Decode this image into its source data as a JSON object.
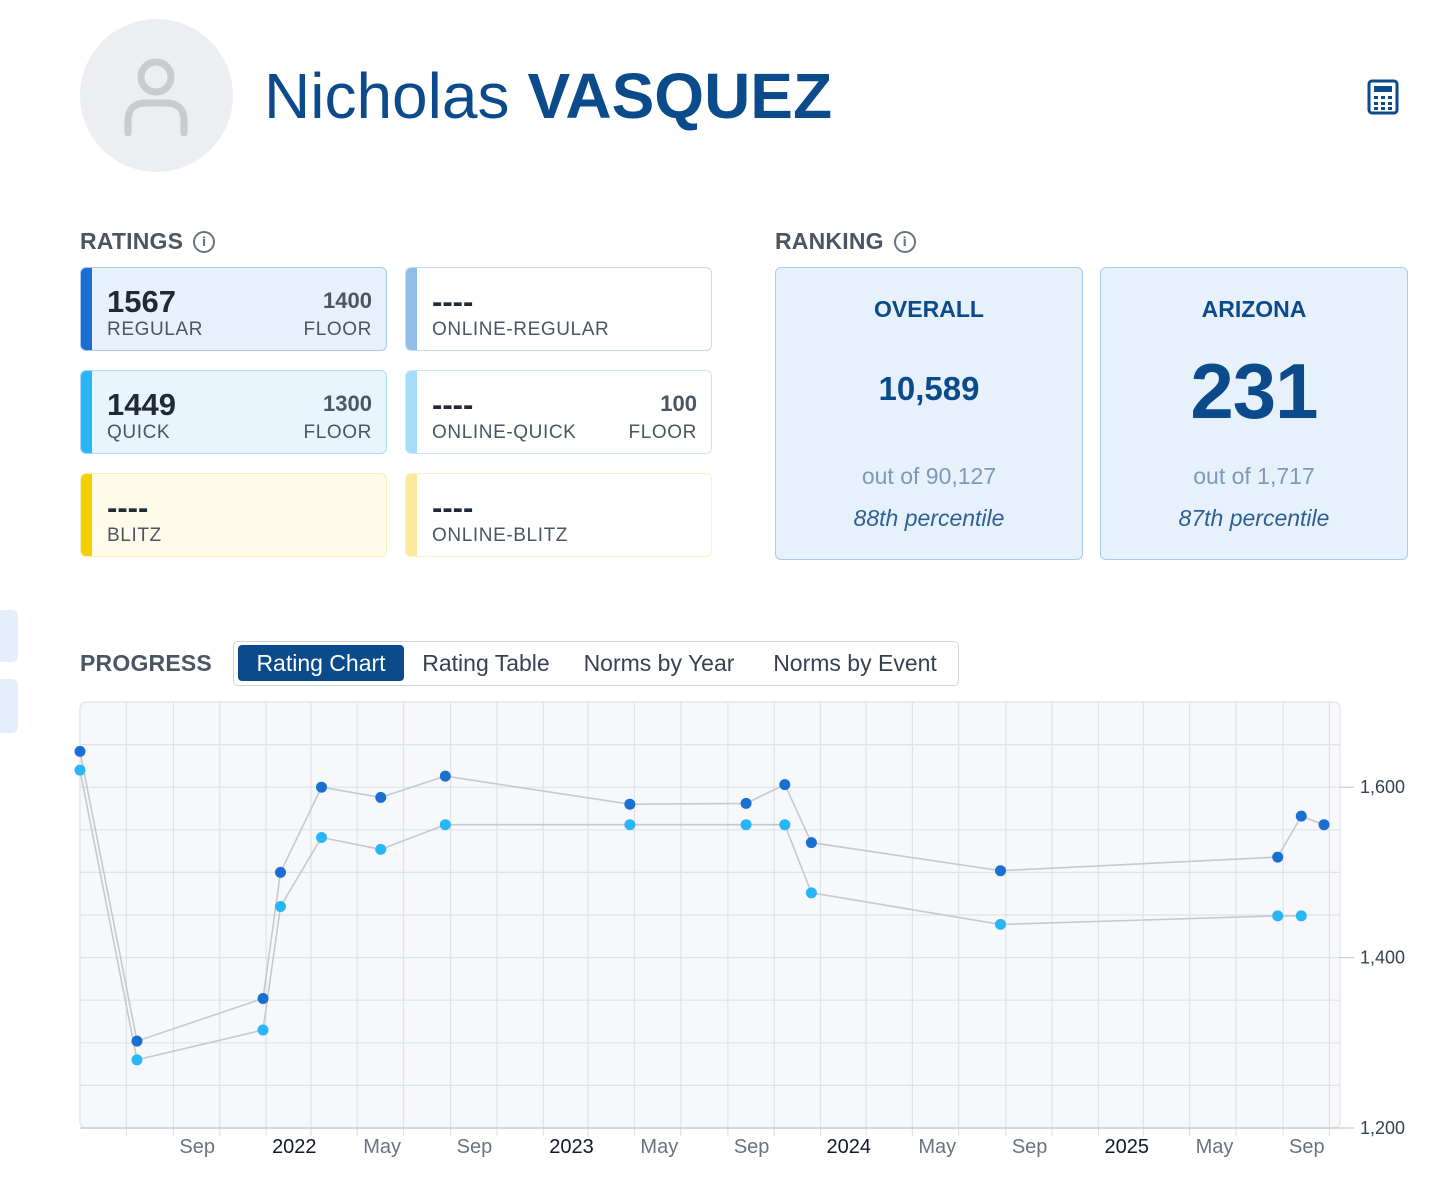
{
  "player": {
    "first_name": "Nicholas",
    "last_name": "VASQUEZ"
  },
  "ratings": {
    "title": "RATINGS",
    "cards": [
      {
        "value": "1567",
        "label": "REGULAR",
        "floor_value": "1400",
        "floor_label": "FLOOR"
      },
      {
        "value": "----",
        "label": "ONLINE-REGULAR",
        "floor_value": "",
        "floor_label": ""
      },
      {
        "value": "1449",
        "label": "QUICK",
        "floor_value": "1300",
        "floor_label": "FLOOR"
      },
      {
        "value": "----",
        "label": "ONLINE-QUICK",
        "floor_value": "100",
        "floor_label": "FLOOR"
      },
      {
        "value": "----",
        "label": "BLITZ",
        "floor_value": "",
        "floor_label": ""
      },
      {
        "value": "----",
        "label": "ONLINE-BLITZ",
        "floor_value": "",
        "floor_label": ""
      }
    ]
  },
  "ranking": {
    "title": "RANKING",
    "overall": {
      "title": "OVERALL",
      "rank": "10,589",
      "out_of": "out of 90,127",
      "percentile": "88th percentile"
    },
    "state": {
      "title": "ARIZONA",
      "rank": "231",
      "out_of": "out of 1,717",
      "percentile": "87th percentile"
    }
  },
  "progress": {
    "title": "PROGRESS",
    "tabs": [
      "Rating Chart",
      "Rating Table",
      "Norms by Year",
      "Norms by Event"
    ],
    "active_tab": "Rating Chart"
  },
  "colors": {
    "brand": "#0b4a8b",
    "regular": "#1a6fd0",
    "quick": "#29b6f6",
    "blitz": "#f5d000",
    "online_regular": "#93bde9",
    "online_quick": "#a6dcfa",
    "online_blitz": "#fbe89a"
  },
  "chart_data": {
    "type": "line",
    "x_ticks": [
      "Sep",
      "2022",
      "May",
      "Sep",
      "2023",
      "May",
      "Sep",
      "2024",
      "May",
      "Sep",
      "2025",
      "May",
      "Sep"
    ],
    "bold_ticks": [
      "2022",
      "2023",
      "2024",
      "2025"
    ],
    "y_ticks": [
      "1,200",
      "1,400",
      "1,600"
    ],
    "ylim": [
      1200,
      1700
    ],
    "xlim": [
      "2021-05-01",
      "2025-11-15"
    ],
    "grid": true,
    "series": [
      {
        "key": "regular",
        "color": "#1a6fd0",
        "points": [
          [
            "2021-05-01",
            1642
          ],
          [
            "2021-07-15",
            1302
          ],
          [
            "2021-12-28",
            1352
          ],
          [
            "2022-01-20",
            1500
          ],
          [
            "2022-03-15",
            1600
          ],
          [
            "2022-06-01",
            1588
          ],
          [
            "2022-08-25",
            1613
          ],
          [
            "2023-04-25",
            1580
          ],
          [
            "2023-09-25",
            1581
          ],
          [
            "2023-11-15",
            1603
          ],
          [
            "2023-12-20",
            1535
          ],
          [
            "2024-08-25",
            1502
          ],
          [
            "2025-08-25",
            1518
          ],
          [
            "2025-09-25",
            1566
          ],
          [
            "2025-10-25",
            1556
          ]
        ]
      },
      {
        "key": "quick",
        "color": "#29b6f6",
        "points": [
          [
            "2021-05-01",
            1620
          ],
          [
            "2021-07-15",
            1280
          ],
          [
            "2021-12-28",
            1315
          ],
          [
            "2022-01-20",
            1460
          ],
          [
            "2022-03-15",
            1541
          ],
          [
            "2022-06-01",
            1527
          ],
          [
            "2022-08-25",
            1556
          ],
          [
            "2023-04-25",
            1556
          ],
          [
            "2023-09-25",
            1556
          ],
          [
            "2023-11-15",
            1556
          ],
          [
            "2023-12-20",
            1476
          ],
          [
            "2024-08-25",
            1439
          ],
          [
            "2025-08-25",
            1449
          ],
          [
            "2025-09-25",
            1449
          ]
        ]
      }
    ]
  }
}
